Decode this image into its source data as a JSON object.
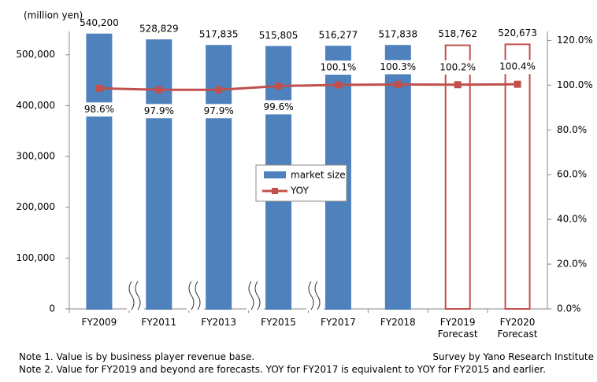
{
  "chart_data": {
    "type": "bar_line",
    "y_unit_label": "(million yen)",
    "categories": [
      "FY2009",
      "FY2011",
      "FY2013",
      "FY2015",
      "FY2017",
      "FY2018",
      "FY2019 Forecast",
      "FY2020 Forecast"
    ],
    "series": [
      {
        "name": "market size",
        "type": "bar",
        "colors": [
          "#4f81bd",
          "#4f81bd",
          "#4f81bd",
          "#4f81bd",
          "#4f81bd",
          "#4f81bd",
          "#ffffff",
          "#ffffff"
        ],
        "edge_colors": [
          "#4f81bd",
          "#4f81bd",
          "#4f81bd",
          "#4f81bd",
          "#4f81bd",
          "#4f81bd",
          "#c0504d",
          "#c0504d"
        ],
        "values": [
          540200,
          528829,
          517835,
          515805,
          516277,
          517838,
          518762,
          520673
        ],
        "value_labels": [
          "540,200",
          "528,829",
          "517,835",
          "515,805",
          "516,277",
          "517,838",
          "518,762",
          "520,673"
        ]
      },
      {
        "name": "YOY",
        "type": "line",
        "axis": "y2",
        "color": "#c0504d",
        "values": [
          98.6,
          97.9,
          97.9,
          99.6,
          100.1,
          100.3,
          100.2,
          100.4
        ],
        "value_labels": [
          "98.6%",
          "97.9%",
          "97.9%",
          "99.6%",
          "100.1%",
          "100.3%",
          "100.2%",
          "100.4%"
        ]
      }
    ],
    "ylim": [
      0,
      546000
    ],
    "yticks": [
      0,
      {
        "value": 100000,
        "label": "100,000"
      },
      {
        "value": 200000,
        "label": "200,000"
      },
      {
        "value": 300000,
        "label": "300,000"
      },
      {
        "value": 400000,
        "label": "400,000"
      },
      {
        "value": 500000,
        "label": "500,000"
      }
    ],
    "y2lim": [
      0,
      124
    ],
    "y2ticks": [
      {
        "value": 0,
        "label": "0.0%"
      },
      {
        "value": 20,
        "label": "20.0%"
      },
      {
        "value": 40,
        "label": "40.0%"
      },
      {
        "value": 60,
        "label": "60.0%"
      },
      {
        "value": 80,
        "label": "80.0%"
      },
      {
        "value": 100,
        "label": "100.0%"
      },
      {
        "value": 120,
        "label": "120.0%"
      }
    ],
    "grid": false,
    "legend": "center",
    "notes": [
      "Note 1.  Value is by business player revenue base.",
      "Note 2.  Value for FY2019 and beyond are forecasts. YOY for FY2017 is equivalent to YOY for FY2015 and earlier."
    ],
    "source": "Survey by Yano Research Institute"
  }
}
